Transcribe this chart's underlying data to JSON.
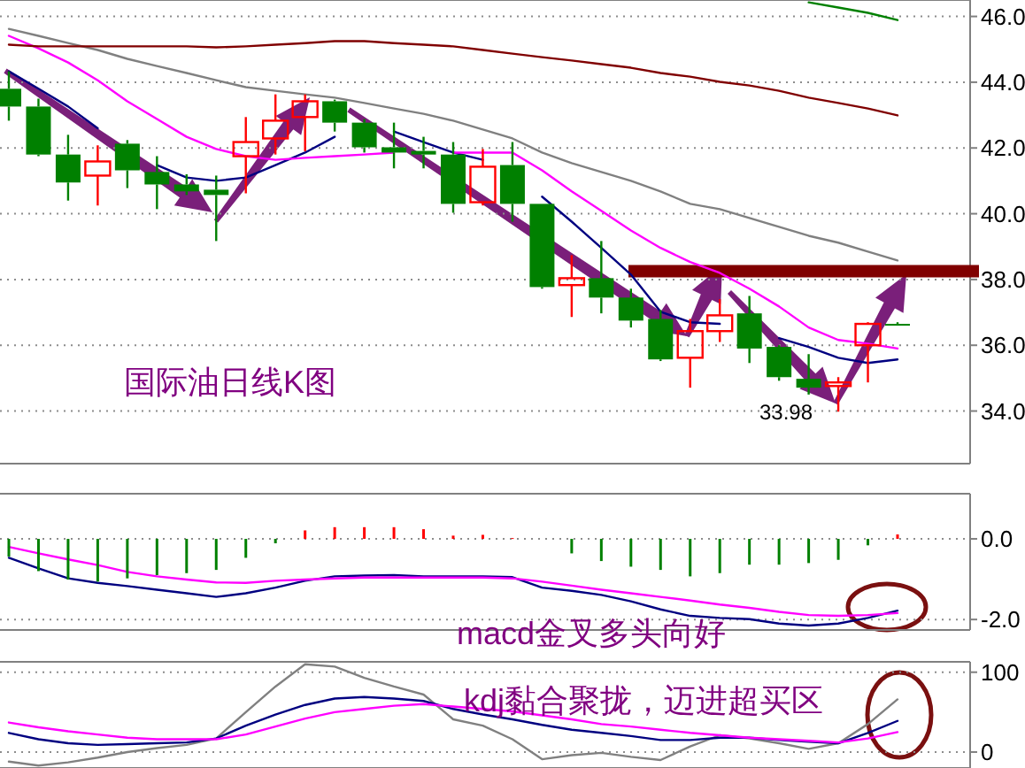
{
  "chart_data": [
    {
      "type": "candlestick",
      "categories": [
        null,
        null,
        null,
        null,
        null,
        null,
        null,
        null,
        null,
        null,
        null,
        null,
        null,
        null,
        null,
        null,
        null,
        null,
        null,
        null,
        null,
        null,
        null,
        null,
        null,
        null,
        null,
        null,
        null,
        null,
        null
      ],
      "ohlc": [
        [
          43.8,
          44.33,
          42.83,
          43.26
        ],
        [
          43.26,
          43.5,
          41.75,
          41.8
        ],
        [
          41.8,
          42.4,
          40.4,
          40.95
        ],
        [
          41.16,
          42.08,
          40.25,
          41.59
        ],
        [
          42.13,
          42.24,
          40.78,
          41.32
        ],
        [
          41.27,
          41.75,
          40.14,
          40.89
        ],
        [
          40.89,
          41.2,
          40.57,
          40.68
        ],
        [
          40.73,
          41.16,
          39.17,
          40.57
        ],
        [
          41.75,
          42.94,
          40.62,
          42.18
        ],
        [
          42.29,
          43.63,
          41.8,
          42.83
        ],
        [
          42.94,
          43.63,
          41.9,
          43.42
        ],
        [
          43.42,
          43.47,
          42.5,
          42.77
        ],
        [
          42.77,
          42.88,
          41.86,
          42.02
        ],
        [
          42.02,
          42.77,
          41.38,
          41.86
        ],
        [
          41.91,
          42.34,
          41.38,
          41.8
        ],
        [
          41.8,
          42.18,
          40.03,
          40.3
        ],
        [
          40.35,
          41.97,
          40.25,
          41.43
        ],
        [
          41.48,
          42.18,
          39.76,
          40.3
        ],
        [
          40.3,
          40.3,
          37.72,
          37.77
        ],
        [
          37.83,
          38.74,
          36.86,
          38.04
        ],
        [
          38.04,
          39.17,
          36.97,
          37.45
        ],
        [
          37.45,
          37.72,
          36.54,
          36.75
        ],
        [
          36.8,
          37.07,
          35.52,
          35.57
        ],
        [
          35.62,
          36.8,
          34.71,
          36.43
        ],
        [
          36.43,
          37.4,
          36.1,
          36.91
        ],
        [
          36.97,
          37.5,
          35.46,
          35.9
        ],
        [
          35.95,
          36.0,
          34.92,
          35.03
        ],
        [
          34.98,
          35.73,
          34.5,
          34.71
        ],
        [
          34.76,
          35.03,
          33.98,
          34.87
        ],
        [
          36.0,
          36.7,
          34.87,
          36.65
        ],
        [
          36.65,
          36.7,
          36.6,
          36.6
        ]
      ],
      "colors": [
        "#008000",
        "#008000",
        "#008000",
        "#ff0000",
        "#008000",
        "#008000",
        "#008000",
        "#008000",
        "#ff0000",
        "#ff0000",
        "#ff0000",
        "#008000",
        "#008000",
        "#008000",
        "#008000",
        "#008000",
        "#ff0000",
        "#008000",
        "#008000",
        "#ff0000",
        "#008000",
        "#008000",
        "#008000",
        "#ff0000",
        "#ff0000",
        "#008000",
        "#008000",
        "#008000",
        "#ff0000",
        "#ff0000",
        "#008000"
      ],
      "series": [
        {
          "type": "line",
          "color": "#000080",
          "values": [
            44.33,
            43.8,
            43.26,
            42.6,
            null,
            41.48,
            41.1,
            41.0,
            41.1,
            41.48,
            41.86,
            42.34,
            null,
            42.5,
            42.18,
            41.86,
            41.64,
            null,
            40.52,
            39.76,
            38.96,
            38.15,
            37.02,
            36.7,
            36.65,
            null,
            36.22,
            35.95,
            35.62,
            35.46,
            35.57
          ]
        },
        {
          "type": "line",
          "color": "#ff00ff",
          "values": [
            45.41,
            45.03,
            44.6,
            44.06,
            43.42,
            42.88,
            42.34,
            41.97,
            41.75,
            41.64,
            41.7,
            41.75,
            41.8,
            41.86,
            null,
            41.86,
            41.86,
            41.86,
            41.32,
            40.68,
            40.09,
            39.49,
            38.96,
            38.53,
            38.2,
            37.72,
            37.18,
            36.54,
            36.16,
            36.05,
            35.9
          ]
        },
        {
          "type": "line",
          "color": "#808080",
          "values": [
            45.62,
            45.41,
            45.19,
            44.98,
            44.71,
            44.49,
            44.28,
            44.06,
            43.85,
            43.74,
            43.63,
            43.53,
            43.37,
            43.2,
            43.04,
            42.83,
            42.56,
            42.29,
            41.86,
            41.54,
            41.27,
            41.0,
            40.68,
            40.3,
            40.14,
            39.87,
            39.6,
            39.33,
            39.12,
            38.85,
            38.58
          ]
        },
        {
          "type": "line",
          "color": "#800000",
          "values": [
            45.14,
            45.09,
            45.09,
            45.09,
            45.09,
            45.09,
            45.09,
            45.06,
            45.09,
            45.14,
            45.19,
            45.25,
            45.25,
            45.19,
            45.14,
            45.09,
            44.98,
            44.87,
            44.76,
            44.66,
            44.55,
            44.44,
            44.28,
            44.17,
            44.01,
            43.9,
            43.74,
            43.53,
            43.37,
            43.2,
            42.99
          ]
        },
        {
          "type": "line",
          "color": "#008000",
          "values": [
            null,
            null,
            null,
            null,
            null,
            null,
            null,
            null,
            null,
            null,
            null,
            null,
            null,
            null,
            null,
            null,
            null,
            null,
            null,
            null,
            null,
            null,
            null,
            null,
            null,
            null,
            null,
            46.43,
            46.27,
            46.11,
            45.89
          ]
        }
      ],
      "ylim": [
        32.4,
        46.5
      ],
      "yticks": [
        {
          "value": 34,
          "label": "34.0"
        },
        {
          "value": 36,
          "label": "36.0"
        },
        {
          "value": 38,
          "label": "38.0"
        },
        {
          "value": 40,
          "label": "40.0"
        },
        {
          "value": 42,
          "label": "42.0"
        },
        {
          "value": 44,
          "label": "44.0"
        },
        {
          "value": 46,
          "label": "46.0"
        }
      ],
      "grid": "y",
      "tick_labels": "y",
      "ref_lines": [
        {
          "axis": "y",
          "value": 38.25,
          "color": "#800000"
        }
      ],
      "annotations": [
        "国际油日线K图",
        "33.98"
      ]
    },
    {
      "type": "bar",
      "categories": [
        null,
        null,
        null,
        null,
        null,
        null,
        null,
        null,
        null,
        null,
        null,
        null,
        null,
        null,
        null,
        null,
        null,
        null,
        null,
        null,
        null,
        null,
        null,
        null,
        null,
        null,
        null,
        null,
        null,
        null,
        null
      ],
      "values": [
        -0.44,
        -0.8,
        -1.01,
        -1.06,
        -0.98,
        -0.9,
        -0.85,
        -0.77,
        -0.47,
        -0.11,
        0.21,
        0.29,
        0.29,
        0.29,
        0.24,
        0.08,
        0.1,
        0.02,
        null,
        -0.36,
        -0.55,
        -0.69,
        -0.77,
        -0.93,
        -0.85,
        -0.64,
        -0.64,
        -0.6,
        -0.52,
        -0.16,
        0.11
      ],
      "colors": [
        "#008000",
        "#008000",
        "#008000",
        "#008000",
        "#008000",
        "#008000",
        "#008000",
        "#008000",
        "#008000",
        "#008000",
        "#ff0000",
        "#ff0000",
        "#ff0000",
        "#ff0000",
        "#ff0000",
        "#ff0000",
        "#ff0000",
        "#ff0000",
        null,
        "#008000",
        "#008000",
        "#008000",
        "#008000",
        "#008000",
        "#008000",
        "#008000",
        "#008000",
        "#008000",
        "#008000",
        "#008000",
        "#ff0000"
      ],
      "series": [
        {
          "type": "line",
          "color": "#000080",
          "values": [
            -0.47,
            -0.73,
            -0.98,
            -1.09,
            -1.17,
            -1.26,
            -1.35,
            -1.44,
            -1.35,
            -1.21,
            -1.04,
            -0.93,
            -0.91,
            -0.9,
            -0.93,
            -0.93,
            -0.93,
            -0.95,
            -1.21,
            -1.29,
            -1.39,
            -1.55,
            -1.75,
            -1.91,
            -1.96,
            -1.99,
            -2.1,
            -2.15,
            -2.1,
            -1.96,
            -1.78
          ]
        },
        {
          "type": "line",
          "color": "#ff00ff",
          "values": [
            -0.2,
            -0.36,
            -0.51,
            -0.65,
            -0.82,
            -0.93,
            -1.01,
            -1.08,
            -1.09,
            -1.04,
            -1.01,
            -0.98,
            -0.96,
            -0.96,
            -0.96,
            -0.96,
            -0.96,
            -0.98,
            -1.06,
            -1.16,
            -1.26,
            -1.35,
            -1.44,
            -1.53,
            -1.63,
            -1.71,
            -1.81,
            -1.89,
            -1.91,
            -1.89,
            -1.84
          ]
        }
      ],
      "ylim": [
        -2.26,
        1.12
      ],
      "yticks": [
        {
          "value": -2,
          "label": "-2.0"
        },
        {
          "value": 0,
          "label": "0.0"
        }
      ],
      "grid": "y",
      "tick_labels": "y",
      "annotations": [
        "macd金叉多头向好"
      ]
    },
    {
      "type": "line",
      "categories": [
        null,
        null,
        null,
        null,
        null,
        null,
        null,
        null,
        null,
        null,
        null,
        null,
        null,
        null,
        null,
        null,
        null,
        null,
        null,
        null,
        null,
        null,
        null,
        null,
        null,
        null,
        null,
        null,
        null,
        null,
        null
      ],
      "series": [
        {
          "color": "#808080",
          "values": [
            -12,
            -17,
            -13,
            -7,
            0,
            5,
            9,
            17,
            50,
            82,
            110,
            107,
            93,
            82,
            72,
            41,
            33,
            16,
            -9,
            -4,
            -1,
            -6,
            -10,
            7,
            21,
            17,
            11,
            4,
            11,
            35,
            66
          ]
        },
        {
          "color": "#000080",
          "values": [
            24,
            16,
            11,
            9,
            10,
            11,
            12,
            17,
            33,
            47,
            59,
            67,
            69,
            67,
            64,
            54,
            47,
            41,
            34,
            28,
            24,
            20,
            15,
            15,
            18,
            18,
            15,
            13,
            11,
            24,
            39
          ]
        },
        {
          "color": "#ff00ff",
          "values": [
            37,
            31,
            26,
            22,
            18,
            16,
            16,
            16,
            22,
            32,
            42,
            50,
            54,
            58,
            60,
            57,
            54,
            51,
            46,
            41,
            35,
            32,
            28,
            24,
            21,
            18,
            16,
            14,
            12,
            17,
            25
          ]
        }
      ],
      "ylim": [
        -20,
        113
      ],
      "yticks": [
        0,
        100
      ],
      "grid": "y",
      "tick_labels": "y",
      "annotations": [
        "kdj黏合聚拢，迈进超买区"
      ]
    }
  ]
}
